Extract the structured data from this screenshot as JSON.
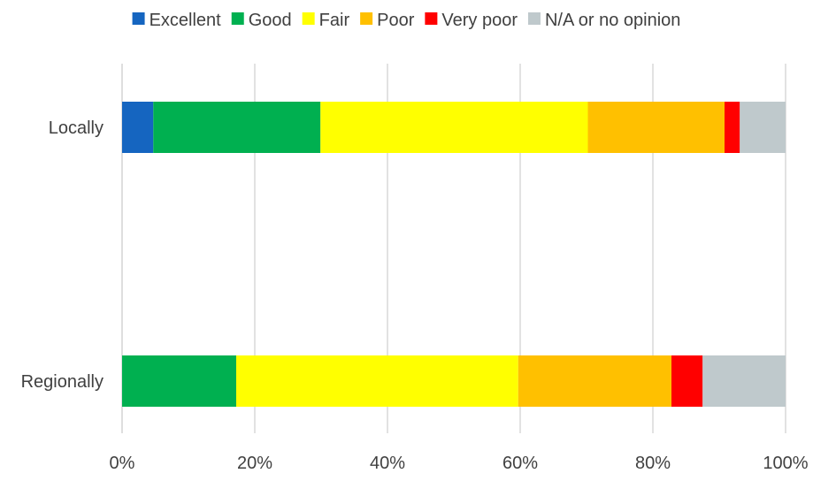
{
  "chart_data": {
    "type": "bar",
    "orientation": "horizontal",
    "stacked": "percent",
    "title": "",
    "xlabel": "",
    "ylabel": "",
    "xlim": [
      0,
      100
    ],
    "x_ticks": [
      "0%",
      "20%",
      "40%",
      "60%",
      "80%",
      "100%"
    ],
    "grid": "vertical",
    "legend_position": "top",
    "categories": [
      "Locally",
      "Regionally"
    ],
    "series": [
      {
        "name": "Excellent",
        "color": "#1565C0",
        "values": [
          4.7,
          0.0
        ]
      },
      {
        "name": "Good",
        "color": "#00B050",
        "values": [
          25.2,
          17.2
        ]
      },
      {
        "name": "Fair",
        "color": "#FFFF00",
        "values": [
          40.3,
          42.5
        ]
      },
      {
        "name": "Poor",
        "color": "#FFC000",
        "values": [
          20.6,
          23.1
        ]
      },
      {
        "name": "Very poor",
        "color": "#FF0000",
        "values": [
          2.3,
          4.7
        ]
      },
      {
        "name": "N/A or no opinion",
        "color": "#BFC9CC",
        "values": [
          6.9,
          12.5
        ]
      }
    ]
  }
}
